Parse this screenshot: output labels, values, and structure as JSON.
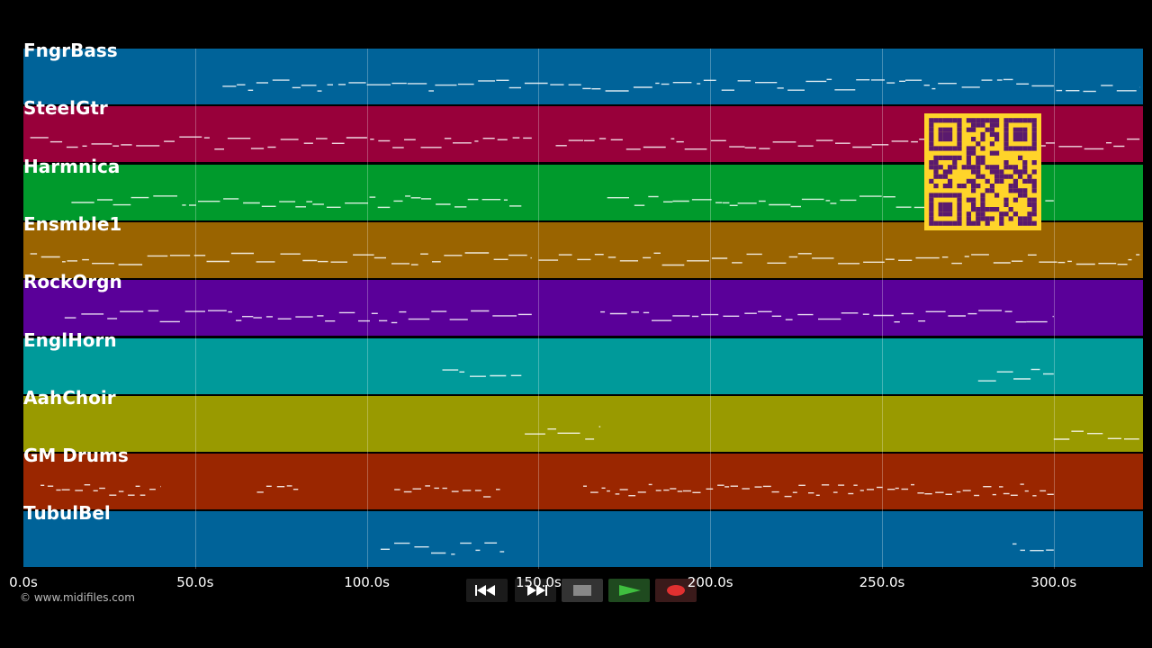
{
  "tracks": [
    {
      "name": "FngrBass",
      "color": "#006399"
    },
    {
      "name": "SteelGtr",
      "color": "#98003a"
    },
    {
      "name": "Harmnica",
      "color": "#009a2c"
    },
    {
      "name": "Ensmble1",
      "color": "#9a6400"
    },
    {
      "name": "RockOrgn",
      "color": "#5a0099"
    },
    {
      "name": "EnglHorn",
      "color": "#009a9a"
    },
    {
      "name": "AahChoir",
      "color": "#999a00"
    },
    {
      "name": "GM Drums",
      "color": "#9a2600"
    },
    {
      "name": "TubulBel",
      "color": "#006399"
    }
  ],
  "timeline": {
    "ticks": [
      "0.0s",
      "50.0s",
      "100.0s",
      "150.0s",
      "200.0s",
      "250.0s",
      "300.0s"
    ],
    "duration_s": 326
  },
  "copyright": "© www.midifiles.com",
  "transport": {
    "buttons": [
      "rewind",
      "fast-forward",
      "stop",
      "play",
      "record"
    ],
    "colors": {
      "stop": "#888888",
      "play": "#3fbf3f",
      "record": "#e03030"
    }
  },
  "qr": {
    "fg": "#5a1a6e",
    "bg": "#ffd42a"
  }
}
